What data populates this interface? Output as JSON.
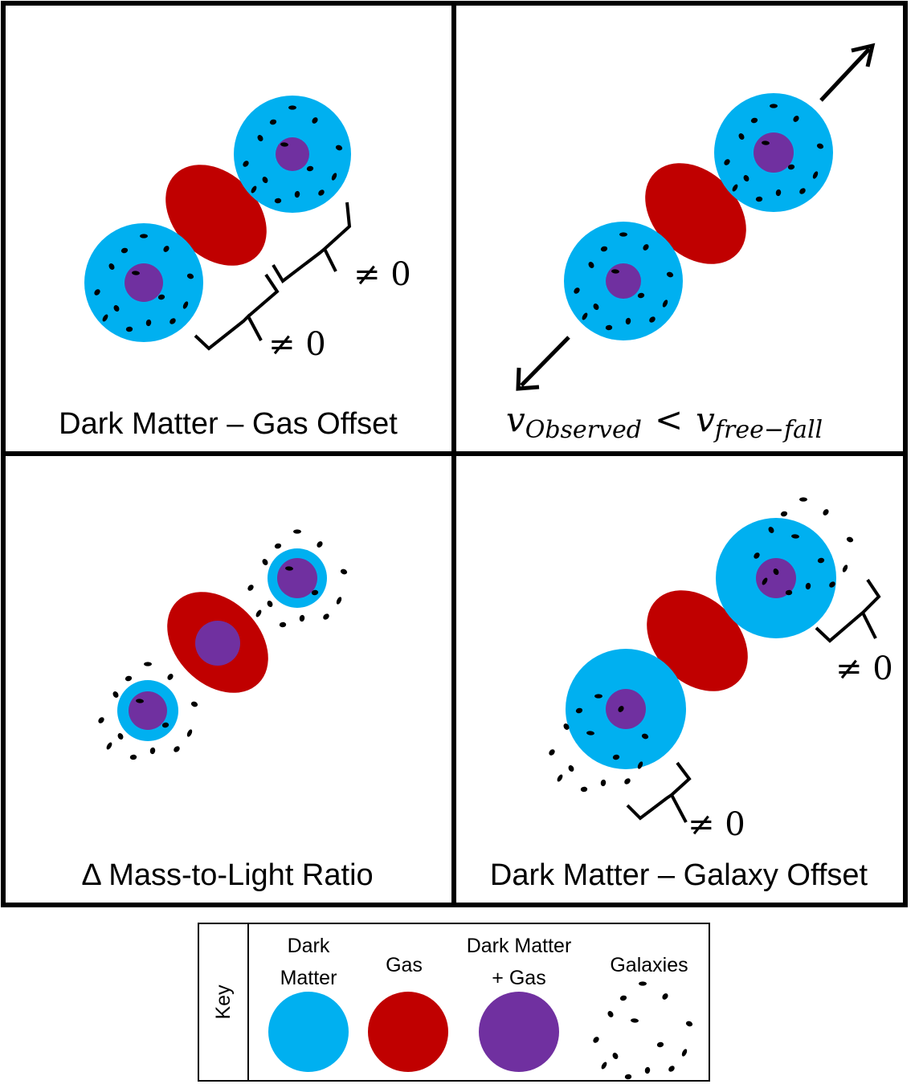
{
  "colors": {
    "dark_matter": "#00b0f0",
    "gas": "#c00000",
    "dark_matter_gas": "#7030a0",
    "galaxies": "#000000",
    "border": "#000000",
    "background": "#ffffff"
  },
  "panels": {
    "top_left": {
      "caption": "Dark Matter – Gas Offset",
      "offset_label_1": "≠ 0",
      "offset_label_2": "≠ 0"
    },
    "top_right": {
      "caption_v1": "v",
      "caption_sub1": "Observed",
      "caption_lt": "<",
      "caption_v2": "v",
      "caption_sub2": "free−fall"
    },
    "bottom_left": {
      "caption": "Δ Mass-to-Light Ratio"
    },
    "bottom_right": {
      "caption": "Dark Matter – Galaxy Offset",
      "offset_label_1": "≠ 0",
      "offset_label_2": "≠ 0"
    }
  },
  "key": {
    "title": "Key",
    "items": [
      {
        "line1": "Dark",
        "line2": "Matter",
        "swatch": "dark_matter"
      },
      {
        "line1": "Gas",
        "line2": "",
        "swatch": "gas"
      },
      {
        "line1": "Dark Matter",
        "line2": "+ Gas",
        "swatch": "dark_matter_gas"
      },
      {
        "line1": "Galaxies",
        "line2": "",
        "swatch": "galaxies-icon"
      }
    ]
  }
}
